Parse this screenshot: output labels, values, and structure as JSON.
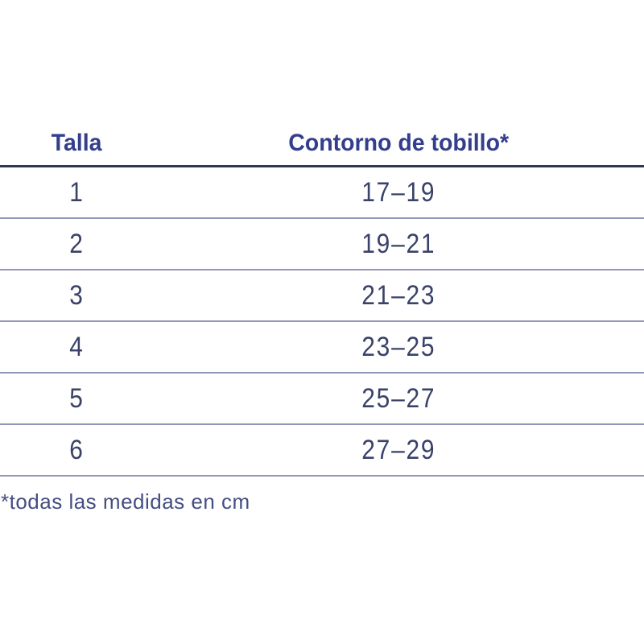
{
  "chart_data": {
    "type": "table",
    "columns": [
      "Talla",
      "Contorno de tobillo*"
    ],
    "rows": [
      [
        "1",
        "17–19"
      ],
      [
        "2",
        "19–21"
      ],
      [
        "3",
        "21–23"
      ],
      [
        "4",
        "23–25"
      ],
      [
        "5",
        "25–27"
      ],
      [
        "6",
        "27–29"
      ]
    ],
    "footnote": "*todas las medidas en cm",
    "units": "cm",
    "layout": {
      "grid": "horizontal-rules-only",
      "header_rule": "dark",
      "row_rules": "light"
    }
  },
  "colors": {
    "background": "#FFFFFF",
    "header_text": "#333E8C",
    "cell_text": "#3A4269",
    "footnote_text": "#444E82",
    "header_rule": "#2C3A50",
    "row_rule": "#9296B8"
  }
}
